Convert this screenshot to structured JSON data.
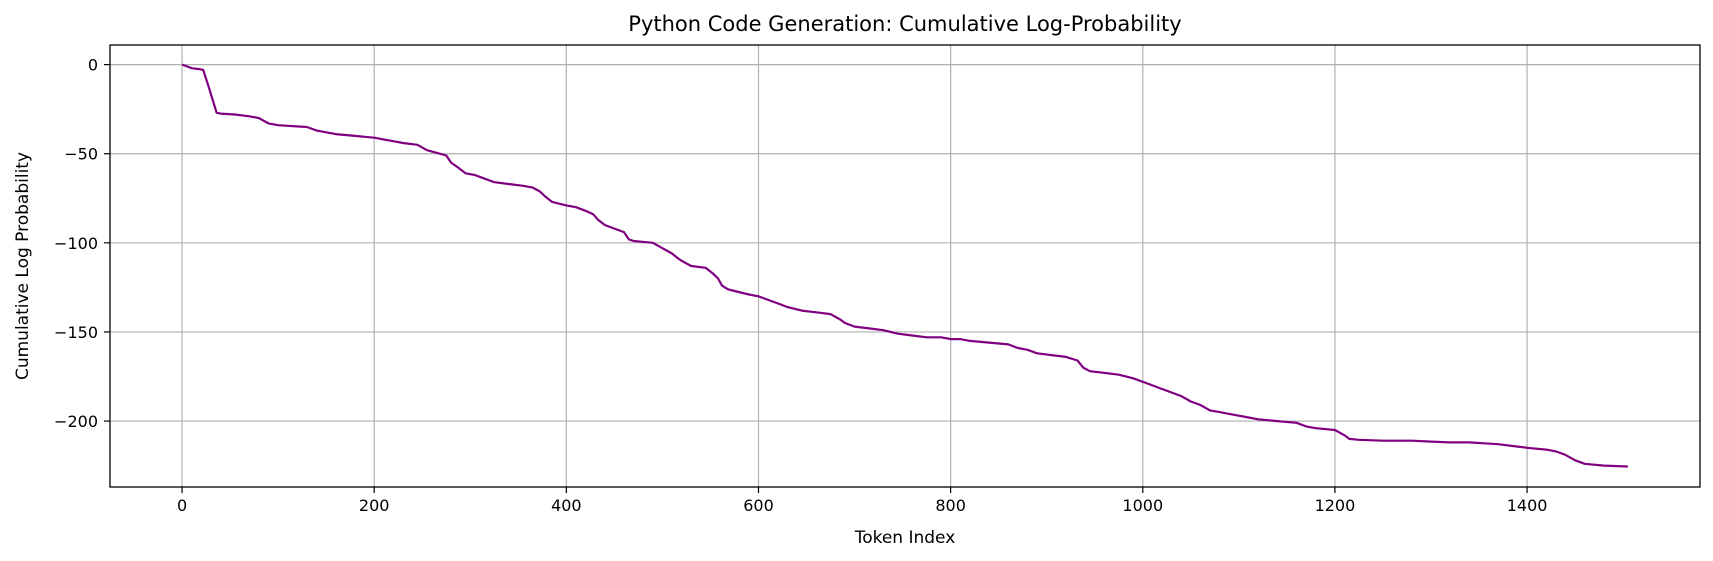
{
  "chart_data": {
    "type": "line",
    "title": "Python Code Generation: Cumulative Log-Probability",
    "xlabel": "Token Index",
    "ylabel": "Cumulative Log Probability",
    "xlim": [
      -75,
      1580
    ],
    "ylim": [
      -237,
      11
    ],
    "xticks": [
      0,
      200,
      400,
      600,
      800,
      1000,
      1200,
      1400
    ],
    "yticks": [
      0,
      -50,
      -100,
      -150,
      -200
    ],
    "xtick_labels": [
      "0",
      "200",
      "400",
      "600",
      "800",
      "1000",
      "1200",
      "1400"
    ],
    "ytick_labels": [
      "0",
      "−50",
      "−100",
      "−150",
      "−200"
    ],
    "grid": true,
    "line_color": "#800080",
    "grid_color": "#b0b0b0",
    "series": [
      {
        "x": [
          0,
          5,
          10,
          18,
          22,
          25,
          28,
          32,
          36,
          40,
          55,
          70,
          80,
          90,
          100,
          115,
          130,
          140,
          150,
          160,
          170,
          180,
          190,
          200,
          210,
          220,
          230,
          245,
          255,
          265,
          275,
          280,
          288,
          295,
          305,
          315,
          325,
          340,
          355,
          365,
          372,
          378,
          385,
          392,
          400,
          410,
          420,
          428,
          433,
          440,
          450,
          460,
          465,
          470,
          490,
          500,
          510,
          517,
          523,
          530,
          545,
          552,
          558,
          562,
          568,
          575,
          590,
          600,
          610,
          620,
          630,
          645,
          660,
          675,
          685,
          690,
          700,
          715,
          730,
          745,
          760,
          775,
          790,
          800,
          810,
          820,
          840,
          860,
          870,
          880,
          890,
          905,
          920,
          932,
          938,
          945,
          960,
          975,
          990,
          1000,
          1010,
          1020,
          1030,
          1040,
          1050,
          1060,
          1070,
          1080,
          1090,
          1100,
          1110,
          1120,
          1140,
          1160,
          1170,
          1180,
          1200,
          1210,
          1215,
          1225,
          1250,
          1280,
          1300,
          1320,
          1340,
          1355,
          1370,
          1385,
          1400,
          1420,
          1430,
          1440,
          1450,
          1460,
          1480,
          1505
        ],
        "y": [
          0,
          -1,
          -2,
          -2.5,
          -3,
          -8,
          -13,
          -20,
          -27,
          -27.5,
          -28,
          -29,
          -30,
          -33,
          -34,
          -34.5,
          -35,
          -37,
          -38,
          -39,
          -39.5,
          -40,
          -40.5,
          -41,
          -42,
          -43,
          -44,
          -45,
          -48,
          -49.5,
          -51,
          -55,
          -58,
          -61,
          -62,
          -64,
          -66,
          -67,
          -68,
          -69,
          -71,
          -74,
          -77,
          -78,
          -79,
          -80,
          -82,
          -84,
          -87,
          -90,
          -92,
          -94,
          -98,
          -99,
          -100,
          -103,
          -106,
          -109,
          -111,
          -113,
          -114,
          -117,
          -120,
          -124,
          -126,
          -127,
          -129,
          -130,
          -132,
          -134,
          -136,
          -138,
          -139,
          -140,
          -143,
          -145,
          -147,
          -148,
          -149,
          -151,
          -152,
          -153,
          -153,
          -154,
          -154,
          -155,
          -156,
          -157,
          -159,
          -160,
          -162,
          -163,
          -164,
          -166,
          -170,
          -172,
          -173,
          -174,
          -176,
          -178,
          -180,
          -182,
          -184,
          -186,
          -189,
          -191,
          -194,
          -195,
          -196,
          -197,
          -198,
          -199,
          -200,
          -201,
          -203,
          -204,
          -205,
          -208,
          -210,
          -210.5,
          -211,
          -211,
          -211.5,
          -212,
          -212,
          -212.5,
          -213,
          -214,
          -215,
          -216,
          -217,
          -219,
          -222,
          -224,
          -225,
          -225.5
        ]
      }
    ]
  }
}
